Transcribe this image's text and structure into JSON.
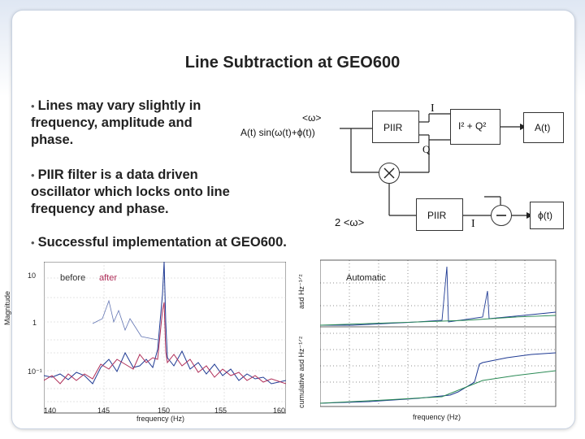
{
  "title": "Line Subtraction at GEO600",
  "bullets": [
    "Lines may vary slightly in frequency, amplitude and phase.",
    "PIIR filter is a data driven oscillator which locks onto line frequency and phase.",
    "Successful implementation at GEO600."
  ],
  "diagram": {
    "omega_avg": "<ω>",
    "input_signal": "A(t) sin(ω(t)+ϕ(t))",
    "piir_top": "PIIR",
    "i_label_top": "I",
    "q_label": "Q",
    "iq_block": "I² + Q²",
    "amp_out": "A(t)",
    "two_omega": "2 <ω>",
    "piir_bottom": "PIIR",
    "i_label_bottom": "I",
    "phase_out": "ϕ(t)"
  },
  "left_plot": {
    "legend": [
      "before",
      "after"
    ],
    "ylabel": "Magnitude",
    "xlabel": "frequency (Hz)",
    "yticks": [
      "10",
      "1",
      "10⁻¹"
    ],
    "xticks": [
      "140",
      "145",
      "150",
      "155",
      "160"
    ]
  },
  "right_plot": {
    "annotation": "Automatic",
    "ylabel_top": "asd  Hz⁻¹ᐟ²",
    "ylabel_bottom": "cumulative asd  Hz⁻¹ᐟ²",
    "xlabel": "frequency (Hz)"
  },
  "colors": {
    "before": "#1f3a93",
    "after": "#b0305a"
  }
}
